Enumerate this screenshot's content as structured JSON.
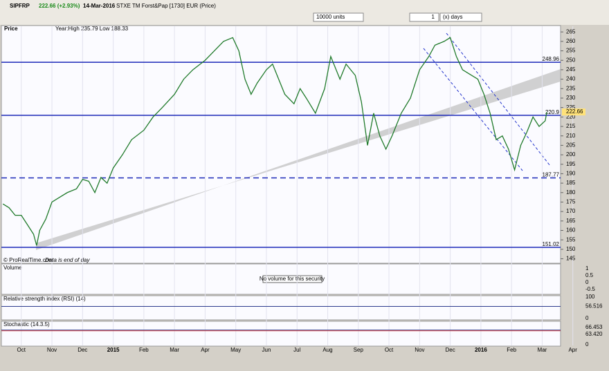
{
  "toolbar": {
    "symbol": "SIPFRP",
    "change": "222.66 (+2.93%)",
    "date": "14-Mar-2016",
    "instrument": "STXE TM Forst&Pap [1730] EUR (Price)",
    "units": "10000 units",
    "period_count": "1",
    "period_unit": "(x) days"
  },
  "chart_data": {
    "type": "line",
    "panel_title": "Price",
    "subtitle": "Year:High 235.79 Low 188.33",
    "credit": "© ProRealTime.com",
    "note": "Data is end of day",
    "color": "#1f7a2a",
    "x": [
      -0.6,
      -0.4,
      -0.2,
      0,
      0.2,
      0.4,
      0.5,
      0.6,
      0.8,
      1.0,
      1.2,
      1.5,
      1.8,
      2.0,
      2.2,
      2.4,
      2.6,
      2.8,
      3.0,
      3.3,
      3.6,
      4.0,
      4.3,
      4.6,
      5.0,
      5.3,
      5.6,
      6.0,
      6.3,
      6.6,
      6.9,
      7.1,
      7.3,
      7.5,
      7.7,
      8.0,
      8.2,
      8.4,
      8.6,
      8.9,
      9.1,
      9.3,
      9.6,
      9.9,
      10.1,
      10.4,
      10.6,
      10.9,
      11.1,
      11.3,
      11.5,
      11.7,
      11.9,
      12.1,
      12.4,
      12.7,
      13.0,
      13.3,
      13.5,
      13.8,
      14.0,
      14.2,
      14.4,
      14.6,
      14.9,
      15.1,
      15.3,
      15.5,
      15.7,
      15.9,
      16.1,
      16.3,
      16.5,
      16.7,
      16.9,
      17.1,
      17.15
    ],
    "values": [
      174,
      172,
      168,
      168,
      163,
      158,
      152,
      160,
      166,
      175,
      177,
      180,
      182,
      187,
      186,
      180,
      188,
      185,
      193,
      200,
      208,
      213,
      220,
      225,
      232,
      240,
      245,
      250,
      255,
      260,
      262,
      255,
      240,
      232,
      238,
      245,
      248,
      240,
      232,
      227,
      235,
      230,
      222,
      235,
      252,
      240,
      248,
      242,
      228,
      205,
      222,
      210,
      203,
      210,
      222,
      230,
      245,
      252,
      258,
      260,
      262,
      252,
      245,
      243,
      240,
      232,
      222,
      208,
      210,
      203,
      192,
      205,
      212,
      220,
      215,
      218,
      222.66
    ],
    "xlim": [
      -0.65,
      17.6
    ],
    "xticks": [
      {
        "value": 0,
        "label": "Oct"
      },
      {
        "value": 1,
        "label": "Nov"
      },
      {
        "value": 2,
        "label": "Dec"
      },
      {
        "value": 3,
        "label": "2015"
      },
      {
        "value": 4,
        "label": "Feb"
      },
      {
        "value": 5,
        "label": "Mar"
      },
      {
        "value": 6,
        "label": "Apr"
      },
      {
        "value": 7,
        "label": "May"
      },
      {
        "value": 8,
        "label": "Jun"
      },
      {
        "value": 9,
        "label": "Jul"
      },
      {
        "value": 10,
        "label": "Aug"
      },
      {
        "value": 11,
        "label": "Sep"
      },
      {
        "value": 12,
        "label": "Oct"
      },
      {
        "value": 13,
        "label": "Nov"
      },
      {
        "value": 14,
        "label": "Dec"
      },
      {
        "value": 15,
        "label": "2016"
      },
      {
        "value": 16,
        "label": "Feb"
      },
      {
        "value": 17,
        "label": "Mar"
      },
      {
        "value": 18,
        "label": "Apr"
      }
    ],
    "ylim": [
      143,
      268
    ],
    "yticks": [
      145,
      150,
      155,
      160,
      165,
      170,
      175,
      180,
      185,
      190,
      195,
      200,
      205,
      210,
      215,
      220,
      225,
      230,
      235,
      240,
      245,
      250,
      255,
      260,
      265
    ],
    "levels": [
      248.96,
      220.9,
      187.77,
      151.02
    ],
    "last": 222.66,
    "grid": true
  },
  "volume": {
    "title": "Volume",
    "message": "No volume for this security",
    "ylim": [
      -0.75,
      1.25
    ],
    "yticks": [
      1,
      0.5,
      0,
      -0.5
    ]
  },
  "rsi": {
    "title": "Relative strength index (RSI) (14)",
    "ylim": [
      0,
      100
    ],
    "yticks": [
      100,
      0
    ],
    "last": 56.516
  },
  "stochastic": {
    "title": "Stochastic (14.3.5)",
    "ylim": [
      0,
      100
    ],
    "yticks": [
      0
    ],
    "last": [
      66.453,
      {
        "value": 63.42,
        "label": "63.420"
      }
    ]
  }
}
